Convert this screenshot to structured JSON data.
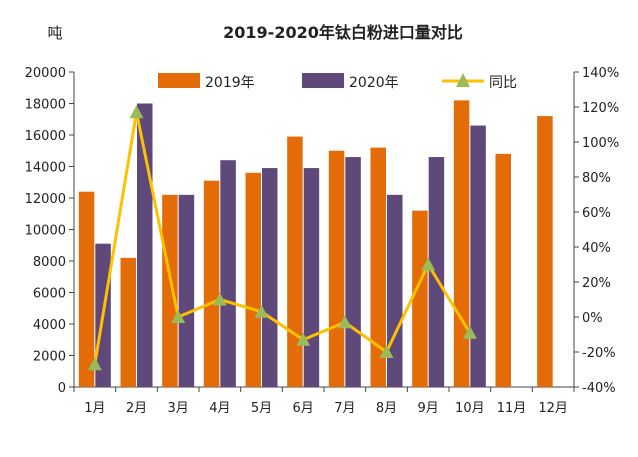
{
  "chart_data": {
    "type": "bar",
    "title": "2019-2020年钛白粉进口量对比",
    "ylabel": "吨",
    "categories": [
      "1月",
      "2月",
      "3月",
      "4月",
      "5月",
      "6月",
      "7月",
      "8月",
      "9月",
      "10月",
      "11月",
      "12月"
    ],
    "series": [
      {
        "name": "2019年",
        "type": "bar",
        "axis": "left",
        "color": "#E36C09",
        "values": [
          12400,
          8200,
          12200,
          13100,
          13600,
          15900,
          15000,
          15200,
          11200,
          18200,
          14800,
          17200
        ]
      },
      {
        "name": "2020年",
        "type": "bar",
        "axis": "left",
        "color": "#5F497A",
        "values": [
          9100,
          18000,
          12200,
          14400,
          13900,
          13900,
          14600,
          12200,
          14600,
          16600,
          null,
          null
        ]
      },
      {
        "name": "同比",
        "type": "line",
        "axis": "right",
        "color": "#FFC000",
        "marker_color": "#9BBB59",
        "values": [
          -27,
          117,
          0,
          10,
          3,
          -13,
          -3,
          -20,
          30,
          -9,
          null,
          null
        ]
      }
    ],
    "ylim": [
      0,
      20000
    ],
    "yticks": [
      0,
      2000,
      4000,
      6000,
      8000,
      10000,
      12000,
      14000,
      16000,
      18000,
      20000
    ],
    "y2lim": [
      -40,
      140
    ],
    "y2ticks": [
      "-40%",
      "-20%",
      "0%",
      "20%",
      "40%",
      "60%",
      "80%",
      "100%",
      "120%",
      "140%"
    ],
    "grid": false,
    "legend_position": "top"
  }
}
